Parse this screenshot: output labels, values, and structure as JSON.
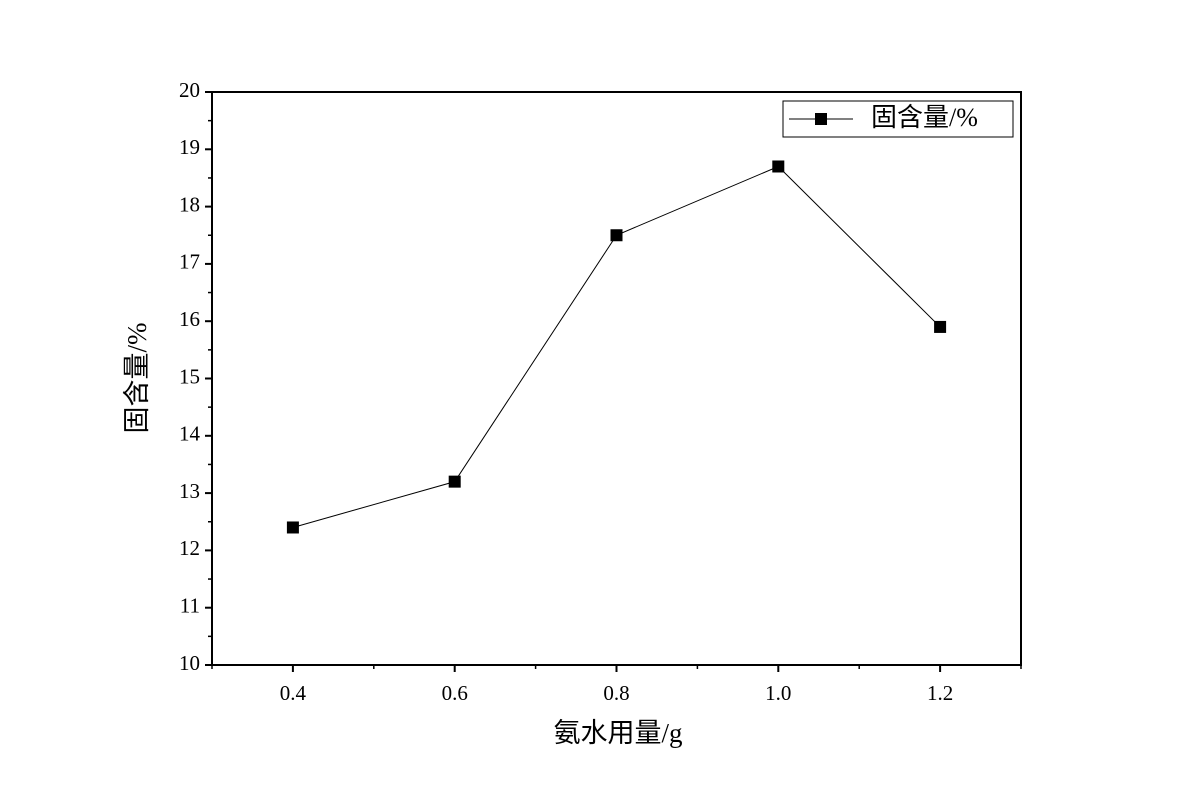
{
  "chart_data": {
    "type": "line",
    "x_label": "氨水用量/g",
    "y_label": "固含量/%",
    "x": [
      0.4,
      0.6,
      0.8,
      1.0,
      1.2
    ],
    "series": [
      {
        "name": "固含量/%",
        "color": "#000000",
        "values": [
          12.4,
          13.2,
          17.5,
          18.7,
          15.9
        ]
      }
    ],
    "xlim": [
      0.3,
      1.3
    ],
    "xticks": [
      {
        "value": 0.4,
        "label": "0.4"
      },
      {
        "value": 0.6,
        "label": "0.6"
      },
      {
        "value": 0.8,
        "label": "0.8"
      },
      {
        "value": 1.0,
        "label": "1.0"
      },
      {
        "value": 1.2,
        "label": "1.2"
      }
    ],
    "ylim": [
      10,
      20
    ],
    "yticks": [
      10,
      11,
      12,
      13,
      14,
      15,
      16,
      17,
      18,
      19,
      20
    ],
    "legend": "top-right",
    "grid": false
  }
}
